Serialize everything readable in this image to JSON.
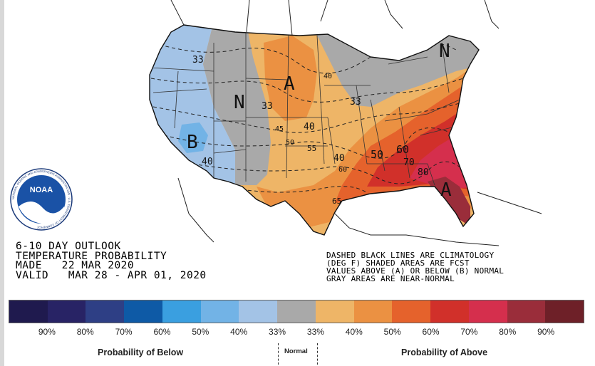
{
  "outlook": {
    "title_lines": [
      "6-10 DAY OUTLOOK",
      "TEMPERATURE PROBABILITY",
      "MADE   22 MAR 2020",
      "VALID   MAR 28 - APR 01, 2020"
    ]
  },
  "notes": {
    "lines": [
      "DASHED BLACK LINES ARE CLIMATOLOGY",
      "(DEG F) SHADED AREAS ARE FCST",
      "VALUES ABOVE (A) OR BELOW (B) NORMAL",
      "GRAY AREAS ARE NEAR-NORMAL"
    ]
  },
  "logo": {
    "text": "NOAA",
    "ring_text": "NATIONAL OCEANIC AND ATMOSPHERIC ADMINISTRATION · U.S. DEPARTMENT OF COMMERCE"
  },
  "map_labels": {
    "region_letters": [
      {
        "id": "below",
        "text": "B"
      },
      {
        "id": "normal",
        "text": "N"
      },
      {
        "id": "above-plains",
        "text": "A"
      },
      {
        "id": "normal-northeast",
        "text": "N"
      },
      {
        "id": "above-florida",
        "text": "A"
      }
    ],
    "climatology_values": [
      "33",
      "33",
      "40",
      "40",
      "45",
      "50",
      "55",
      "33",
      "40",
      "60",
      "65",
      "50",
      "60",
      "70",
      "80",
      "40"
    ]
  },
  "legend": {
    "colors": [
      "#1f1a4e",
      "#282365",
      "#2e3f85",
      "#0e5aa6",
      "#3a9fe0",
      "#72b3e6",
      "#a3c3e6",
      "#a9a9a9",
      "#eeb567",
      "#eb9142",
      "#e5622c",
      "#d1302a",
      "#d52f4d",
      "#9a2d3a",
      "#6e2028"
    ],
    "tick_labels": [
      "90%",
      "80%",
      "70%",
      "60%",
      "50%",
      "40%",
      "33%",
      "33%",
      "40%",
      "50%",
      "60%",
      "70%",
      "80%",
      "90%"
    ],
    "below_caption": "Probability of Below",
    "normal_caption": "Normal",
    "above_caption": "Probability of Above"
  }
}
